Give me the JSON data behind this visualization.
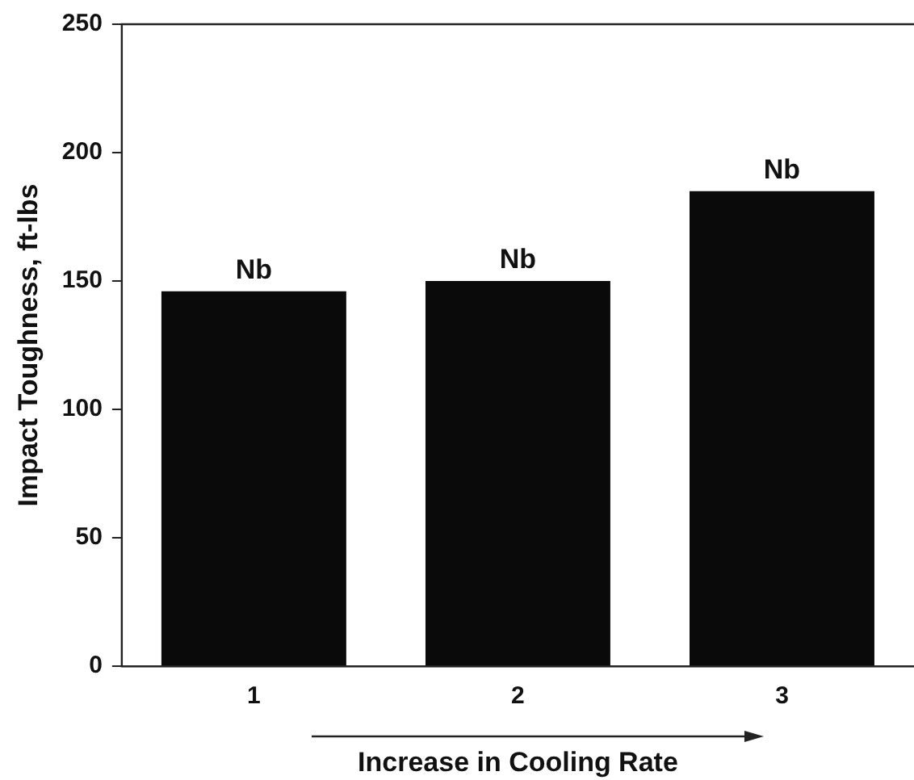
{
  "chart_data": {
    "type": "bar",
    "categories": [
      "1",
      "2",
      "3"
    ],
    "values": [
      146,
      150,
      185
    ],
    "color": "#0a0a0a",
    "xlabel": "Increase in Cooling Rate",
    "ylabel": "Impact Toughness, ft-lbs",
    "ylim": [
      0,
      250
    ],
    "yticks": [
      0,
      50,
      100,
      150,
      200,
      250
    ],
    "annotations": [
      {
        "text": "Nb",
        "x": "1",
        "y": 146
      },
      {
        "text": "Nb",
        "x": "2",
        "y": 150
      },
      {
        "text": "Nb",
        "x": "3",
        "y": 185
      }
    ],
    "grid": false,
    "legend": false
  }
}
